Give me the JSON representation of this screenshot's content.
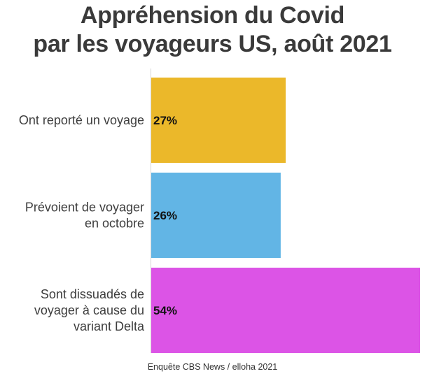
{
  "chart_data": {
    "type": "bar",
    "orientation": "horizontal",
    "title": [
      "Appréhension du Covid",
      "par les voyageurs US, août 2021"
    ],
    "categories": [
      [
        "Ont reporté un voyage"
      ],
      [
        "Prévoient de voyager",
        "en octobre"
      ],
      [
        "Sont dissuadés de",
        "voyager à cause du",
        "variant Delta"
      ]
    ],
    "values": [
      27,
      26,
      54
    ],
    "value_labels": [
      "27%",
      "26%",
      "54%"
    ],
    "unit": "%",
    "colors": [
      "#ebb82a",
      "#62b5e5",
      "#dc54e6"
    ],
    "xlim": [
      0,
      54
    ],
    "grid": false,
    "legend": "none",
    "xlabel": "",
    "ylabel": ""
  },
  "source": "Enquête CBS News / elloha 2021"
}
